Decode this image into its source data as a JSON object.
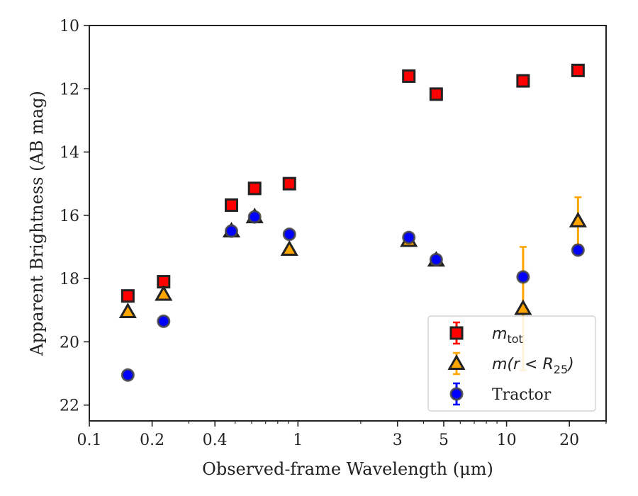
{
  "chart_data": {
    "type": "scatter",
    "xlabel": "Observed-frame Wavelength (μm)",
    "ylabel": "Apparent Brightness (AB mag)",
    "xscale": "log",
    "xlim": [
      0.1,
      30
    ],
    "ylim": [
      22.5,
      10
    ],
    "y_inverted": true,
    "x_ticks": [
      0.1,
      0.2,
      0.4,
      1,
      3,
      5,
      10,
      20
    ],
    "x_tick_labels": [
      "0.1",
      "0.2",
      "0.4",
      "1",
      "3",
      "5",
      "10",
      "20"
    ],
    "y_ticks": [
      10,
      12,
      14,
      16,
      18,
      20,
      22
    ],
    "y_tick_labels": [
      "10",
      "12",
      "14",
      "16",
      "18",
      "20",
      "22"
    ],
    "grid": false,
    "legend_position": "bottom-right",
    "series": [
      {
        "name": "m_tot",
        "legend_main": "m",
        "legend_sub": "tot",
        "marker": "square",
        "color": "#ff0000",
        "edge": "#222222",
        "points": [
          {
            "x": 0.153,
            "y": 18.55,
            "yerr": 0.05
          },
          {
            "x": 0.227,
            "y": 18.1,
            "yerr": 0.05
          },
          {
            "x": 0.48,
            "y": 15.68,
            "yerr": 0.05
          },
          {
            "x": 0.62,
            "y": 15.15,
            "yerr": 0.05
          },
          {
            "x": 0.91,
            "y": 15.0,
            "yerr": 0.05
          },
          {
            "x": 3.4,
            "y": 11.6,
            "yerr": 0.05
          },
          {
            "x": 4.6,
            "y": 12.17,
            "yerr": 0.05
          },
          {
            "x": 12.0,
            "y": 11.75,
            "yerr": 0.05
          },
          {
            "x": 22.0,
            "y": 11.42,
            "yerr": 0.05
          }
        ]
      },
      {
        "name": "m(r < R_25)",
        "legend_main": "m(r < R",
        "legend_sub": "25",
        "legend_tail": ")",
        "marker": "triangle",
        "color": "#ffa500",
        "edge": "#222222",
        "points": [
          {
            "x": 0.153,
            "y": 19.05,
            "yerr": 0.05
          },
          {
            "x": 0.227,
            "y": 18.5,
            "yerr": 0.05
          },
          {
            "x": 0.48,
            "y": 16.5,
            "yerr": 0.05
          },
          {
            "x": 0.62,
            "y": 16.05,
            "yerr": 0.05
          },
          {
            "x": 0.91,
            "y": 17.08,
            "yerr": 0.05
          },
          {
            "x": 3.4,
            "y": 16.8,
            "yerr": 0.05
          },
          {
            "x": 4.6,
            "y": 17.42,
            "yerr": 0.05
          },
          {
            "x": 12.0,
            "y": 18.95,
            "yerr": 1.95
          },
          {
            "x": 22.0,
            "y": 16.18,
            "yerr": 0.75
          }
        ]
      },
      {
        "name": "Tractor",
        "legend_main": "Tractor",
        "marker": "circle",
        "color": "#0000ff",
        "edge": "#444444",
        "points": [
          {
            "x": 0.153,
            "y": 21.05,
            "yerr": 0.05
          },
          {
            "x": 0.227,
            "y": 19.35,
            "yerr": 0.05
          },
          {
            "x": 0.48,
            "y": 16.5,
            "yerr": 0.05
          },
          {
            "x": 0.62,
            "y": 16.05,
            "yerr": 0.05
          },
          {
            "x": 0.91,
            "y": 16.6,
            "yerr": 0.05
          },
          {
            "x": 3.4,
            "y": 16.7,
            "yerr": 0.05
          },
          {
            "x": 4.6,
            "y": 17.4,
            "yerr": 0.05
          },
          {
            "x": 12.0,
            "y": 17.95,
            "yerr": 0.05
          },
          {
            "x": 22.0,
            "y": 17.1,
            "yerr": 0.05
          }
        ]
      }
    ]
  }
}
